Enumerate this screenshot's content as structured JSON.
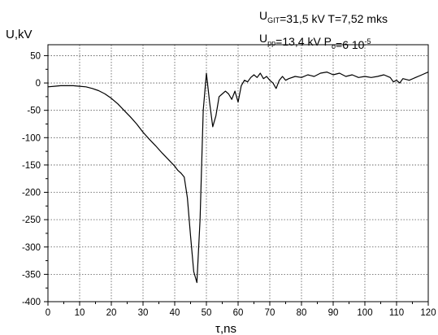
{
  "chart_data": {
    "type": "line",
    "xlabel": "τ,ns",
    "ylabel": "U,kV",
    "xlim": [
      0,
      120
    ],
    "ylim": [
      -400,
      70
    ],
    "xticks": [
      0,
      10,
      20,
      30,
      40,
      50,
      60,
      70,
      80,
      90,
      100,
      110,
      120
    ],
    "yticks": [
      50,
      0,
      -50,
      -100,
      -150,
      -200,
      -250,
      -300,
      -350,
      -400
    ],
    "grid": true,
    "grid_style": "dotted",
    "line_color": "#000000",
    "annotations": {
      "line1": [
        {
          "text": "U",
          "sub": "GIT"
        },
        {
          "text": "=31,5 kV  T=7,52 mks"
        }
      ],
      "line2": [
        {
          "text": "U",
          "sub": "pp"
        },
        {
          "text": "=13,4 kV  P"
        },
        {
          "text": "",
          "sub": "o"
        },
        {
          "text": "=6 10",
          "sup": "-5"
        }
      ]
    },
    "series": [
      {
        "x": [
          0,
          2,
          4,
          6,
          8,
          10,
          12,
          14,
          16,
          18,
          20,
          22,
          24,
          26,
          28,
          30,
          32,
          34,
          36,
          38,
          40,
          41,
          42,
          43,
          44,
          45,
          46,
          47,
          48,
          49,
          50,
          51,
          52,
          53,
          54,
          55,
          56,
          57,
          58,
          59,
          60,
          61,
          62,
          63,
          64,
          65,
          66,
          67,
          68,
          69,
          70,
          71,
          72,
          73,
          74,
          75,
          76,
          78,
          80,
          82,
          84,
          86,
          88,
          90,
          92,
          94,
          96,
          98,
          100,
          102,
          104,
          106,
          108,
          109,
          110,
          111,
          112,
          114,
          116,
          118,
          120
        ],
        "y": [
          -7,
          -6,
          -5,
          -5,
          -5,
          -6,
          -7,
          -10,
          -14,
          -20,
          -28,
          -38,
          -50,
          -62,
          -75,
          -90,
          -103,
          -115,
          -128,
          -140,
          -152,
          -160,
          -165,
          -172,
          -210,
          -280,
          -345,
          -365,
          -250,
          -50,
          18,
          -35,
          -80,
          -60,
          -25,
          -20,
          -15,
          -20,
          -30,
          -15,
          -35,
          -5,
          5,
          2,
          10,
          15,
          10,
          18,
          8,
          12,
          5,
          0,
          -10,
          5,
          12,
          5,
          8,
          12,
          10,
          15,
          12,
          18,
          20,
          15,
          18,
          12,
          15,
          10,
          12,
          10,
          12,
          15,
          10,
          2,
          5,
          0,
          8,
          5,
          10,
          15,
          20
        ]
      }
    ]
  }
}
